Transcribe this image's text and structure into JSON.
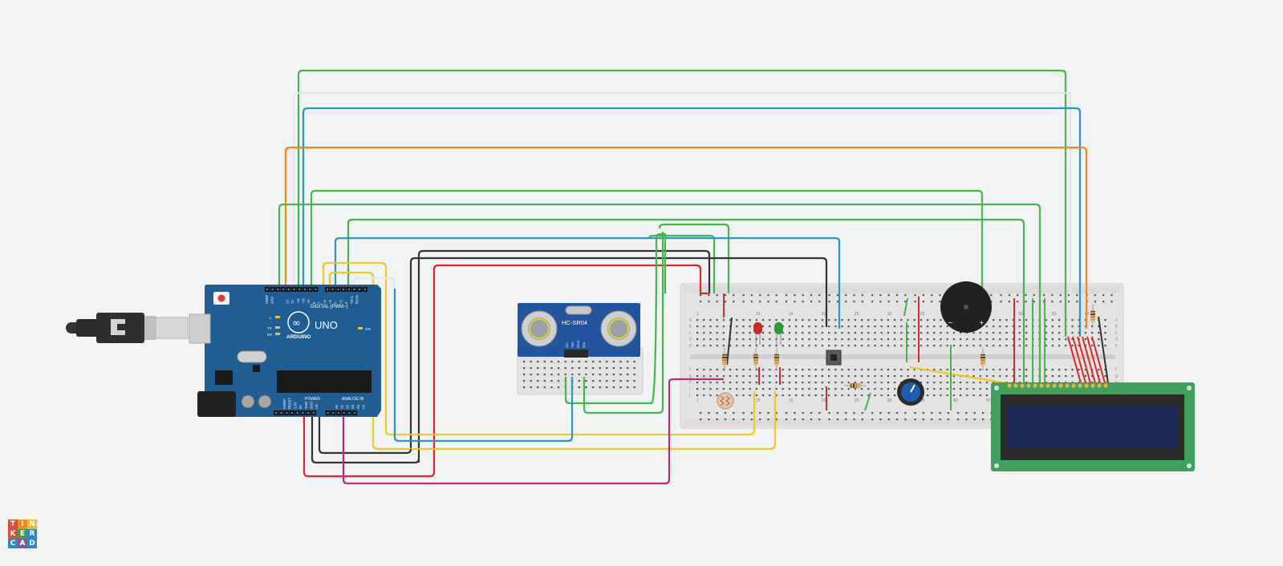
{
  "arduino": {
    "brand": "ARDUINO",
    "model": "UNO",
    "digital_label": "DIGITAL (PWM~)",
    "power_label": "POWER",
    "analog_label": "ANALOG IN",
    "on_label": "ON",
    "l_label": "L",
    "tx_label": "TX",
    "rx_label": "RX",
    "aref_label": "AREF",
    "gnd_label": "GND",
    "digital_pins": [
      "13",
      "12",
      "~11",
      "~10",
      "~9",
      "8",
      "7",
      "~6",
      "~5",
      "4",
      "~3",
      "2",
      "TX>1",
      "RX<0"
    ],
    "power_pins": [
      "IOREF",
      "RESET",
      "3.3V",
      "5V",
      "GND",
      "GND",
      "Vin"
    ],
    "analog_pins": [
      "A0",
      "A1",
      "A2",
      "A3",
      "A4",
      "A5"
    ]
  },
  "sensor": {
    "label": "HC-SR04",
    "pins": [
      "VCC",
      "TRIG",
      "ECHO",
      "GND"
    ]
  },
  "breadboard": {
    "row_letters": [
      "a",
      "b",
      "c",
      "d",
      "e",
      "f",
      "g",
      "h",
      "i",
      "j"
    ],
    "column_numbers": [
      "1",
      "5",
      "10",
      "15",
      "20",
      "25",
      "30",
      "35",
      "40",
      "45",
      "50",
      "55",
      "60"
    ]
  },
  "buzzer": {
    "minus_label": "−",
    "plus_label": "+"
  },
  "logo": {
    "letters": [
      "T",
      "I",
      "N",
      "K",
      "E",
      "R",
      "C",
      "A",
      "D"
    ]
  },
  "colors": {
    "background": "#f1f3f5",
    "arduino_board": "#1f5d93",
    "arduino_board_dark": "#17476f",
    "breadboard": "#e3e3e3",
    "sensor_board": "#23549e",
    "lcd_pcb": "#3fa05c",
    "lcd_screen": "#1d2a55",
    "wire_green": "#45b649",
    "wire_blue": "#2a95c7",
    "wire_orange": "#ef8a1f",
    "wire_red": "#d92929",
    "wire_black": "#333333",
    "wire_yellow": "#f1c81f",
    "wire_magenta": "#c0277f",
    "wire_white": "#e4e6e8",
    "led_red": "#c62a25",
    "led_green": "#2e9b3a",
    "logo_colors": [
      "#e14b3f",
      "#f18a21",
      "#f6b92b",
      "#e14b3f",
      "#3e9d48",
      "#2c8bc4",
      "#2c8bc4",
      "#8c50a0",
      "#2c8bc4"
    ]
  }
}
